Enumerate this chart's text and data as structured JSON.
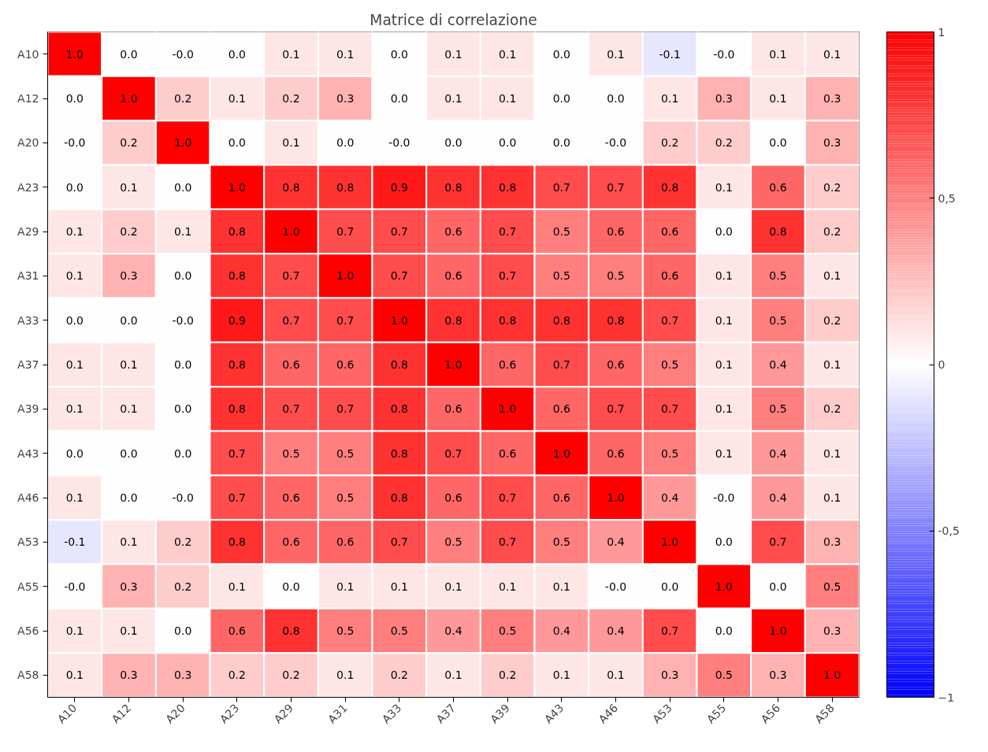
{
  "chart_data": {
    "type": "heatmap",
    "title": "Matrice di correlazione",
    "categories": [
      "A10",
      "A12",
      "A20",
      "A23",
      "A29",
      "A31",
      "A33",
      "A37",
      "A39",
      "A43",
      "A46",
      "A53",
      "A55",
      "A56",
      "A58"
    ],
    "y_categories": [
      "A10",
      "A12",
      "A20",
      "A23",
      "A29",
      "A31",
      "A33",
      "A37",
      "A39",
      "A43",
      "A46",
      "A53",
      "A55",
      "A56",
      "A58"
    ],
    "cells": [
      [
        1.0,
        0.0,
        -0.0,
        0.0,
        0.1,
        0.1,
        0.0,
        0.1,
        0.1,
        0.0,
        0.1,
        -0.1,
        -0.0,
        0.1,
        0.1
      ],
      [
        0.0,
        1.0,
        0.2,
        0.1,
        0.2,
        0.3,
        0.0,
        0.1,
        0.1,
        0.0,
        0.0,
        0.1,
        0.3,
        0.1,
        0.3
      ],
      [
        -0.0,
        0.2,
        1.0,
        0.0,
        0.1,
        0.0,
        -0.0,
        0.0,
        0.0,
        0.0,
        -0.0,
        0.2,
        0.2,
        0.0,
        0.3
      ],
      [
        0.0,
        0.1,
        0.0,
        1.0,
        0.8,
        0.8,
        0.9,
        0.8,
        0.8,
        0.7,
        0.7,
        0.8,
        0.1,
        0.6,
        0.2
      ],
      [
        0.1,
        0.2,
        0.1,
        0.8,
        1.0,
        0.7,
        0.7,
        0.6,
        0.7,
        0.5,
        0.6,
        0.6,
        0.0,
        0.8,
        0.2
      ],
      [
        0.1,
        0.3,
        0.0,
        0.8,
        0.7,
        1.0,
        0.7,
        0.6,
        0.7,
        0.5,
        0.5,
        0.6,
        0.1,
        0.5,
        0.1
      ],
      [
        0.0,
        0.0,
        -0.0,
        0.9,
        0.7,
        0.7,
        1.0,
        0.8,
        0.8,
        0.8,
        0.8,
        0.7,
        0.1,
        0.5,
        0.2
      ],
      [
        0.1,
        0.1,
        0.0,
        0.8,
        0.6,
        0.6,
        0.8,
        1.0,
        0.6,
        0.7,
        0.6,
        0.5,
        0.1,
        0.4,
        0.1
      ],
      [
        0.1,
        0.1,
        0.0,
        0.8,
        0.7,
        0.7,
        0.8,
        0.6,
        1.0,
        0.6,
        0.7,
        0.7,
        0.1,
        0.5,
        0.2
      ],
      [
        0.0,
        0.0,
        0.0,
        0.7,
        0.5,
        0.5,
        0.8,
        0.7,
        0.6,
        1.0,
        0.6,
        0.5,
        0.1,
        0.4,
        0.1
      ],
      [
        0.1,
        0.0,
        -0.0,
        0.7,
        0.6,
        0.5,
        0.8,
        0.6,
        0.7,
        0.6,
        1.0,
        0.4,
        -0.0,
        0.4,
        0.1
      ],
      [
        -0.1,
        0.1,
        0.2,
        0.8,
        0.6,
        0.6,
        0.7,
        0.5,
        0.7,
        0.5,
        0.4,
        1.0,
        0.0,
        0.7,
        0.3
      ],
      [
        -0.0,
        0.3,
        0.2,
        0.1,
        0.0,
        0.1,
        0.1,
        0.1,
        0.1,
        0.1,
        -0.0,
        0.0,
        1.0,
        0.0,
        0.5
      ],
      [
        0.1,
        0.1,
        0.0,
        0.6,
        0.8,
        0.5,
        0.5,
        0.4,
        0.5,
        0.4,
        0.4,
        0.7,
        0.0,
        1.0,
        0.3
      ],
      [
        0.1,
        0.3,
        0.3,
        0.2,
        0.2,
        0.1,
        0.2,
        0.1,
        0.2,
        0.1,
        0.1,
        0.3,
        0.5,
        0.3,
        1.0
      ]
    ],
    "cell_labels": [
      [
        "1.0",
        "0.0",
        "-0.0",
        "0.0",
        "0.1",
        "0.1",
        "0.0",
        "0.1",
        "0.1",
        "0.0",
        "0.1",
        "-0.1",
        "-0.0",
        "0.1",
        "0.1"
      ],
      [
        "0.0",
        "1.0",
        "0.2",
        "0.1",
        "0.2",
        "0.3",
        "0.0",
        "0.1",
        "0.1",
        "0.0",
        "0.0",
        "0.1",
        "0.3",
        "0.1",
        "0.3"
      ],
      [
        "-0.0",
        "0.2",
        "1.0",
        "0.0",
        "0.1",
        "0.0",
        "-0.0",
        "0.0",
        "0.0",
        "0.0",
        "-0.0",
        "0.2",
        "0.2",
        "0.0",
        "0.3"
      ],
      [
        "0.0",
        "0.1",
        "0.0",
        "1.0",
        "0.8",
        "0.8",
        "0.9",
        "0.8",
        "0.8",
        "0.7",
        "0.7",
        "0.8",
        "0.1",
        "0.6",
        "0.2"
      ],
      [
        "0.1",
        "0.2",
        "0.1",
        "0.8",
        "1.0",
        "0.7",
        "0.7",
        "0.6",
        "0.7",
        "0.5",
        "0.6",
        "0.6",
        "0.0",
        "0.8",
        "0.2"
      ],
      [
        "0.1",
        "0.3",
        "0.0",
        "0.8",
        "0.7",
        "1.0",
        "0.7",
        "0.6",
        "0.7",
        "0.5",
        "0.5",
        "0.6",
        "0.1",
        "0.5",
        "0.1"
      ],
      [
        "0.0",
        "0.0",
        "-0.0",
        "0.9",
        "0.7",
        "0.7",
        "1.0",
        "0.8",
        "0.8",
        "0.8",
        "0.8",
        "0.7",
        "0.1",
        "0.5",
        "0.2"
      ],
      [
        "0.1",
        "0.1",
        "0.0",
        "0.8",
        "0.6",
        "0.6",
        "0.8",
        "1.0",
        "0.6",
        "0.7",
        "0.6",
        "0.5",
        "0.1",
        "0.4",
        "0.1"
      ],
      [
        "0.1",
        "0.1",
        "0.0",
        "0.8",
        "0.7",
        "0.7",
        "0.8",
        "0.6",
        "1.0",
        "0.6",
        "0.7",
        "0.7",
        "0.1",
        "0.5",
        "0.2"
      ],
      [
        "0.0",
        "0.0",
        "0.0",
        "0.7",
        "0.5",
        "0.5",
        "0.8",
        "0.7",
        "0.6",
        "1.0",
        "0.6",
        "0.5",
        "0.1",
        "0.4",
        "0.1"
      ],
      [
        "0.1",
        "0.0",
        "-0.0",
        "0.7",
        "0.6",
        "0.5",
        "0.8",
        "0.6",
        "0.7",
        "0.6",
        "1.0",
        "0.4",
        "-0.0",
        "0.4",
        "0.1"
      ],
      [
        "-0.1",
        "0.1",
        "0.2",
        "0.8",
        "0.6",
        "0.6",
        "0.7",
        "0.5",
        "0.7",
        "0.5",
        "0.4",
        "1.0",
        "0.0",
        "0.7",
        "0.3"
      ],
      [
        "-0.0",
        "0.3",
        "0.2",
        "0.1",
        "0.0",
        "0.1",
        "0.1",
        "0.1",
        "0.1",
        "0.1",
        "-0.0",
        "0.0",
        "1.0",
        "0.0",
        "0.5"
      ],
      [
        "0.1",
        "0.1",
        "0.0",
        "0.6",
        "0.8",
        "0.5",
        "0.5",
        "0.4",
        "0.5",
        "0.4",
        "0.4",
        "0.7",
        "0.0",
        "1.0",
        "0.3"
      ],
      [
        "0.1",
        "0.3",
        "0.3",
        "0.2",
        "0.2",
        "0.1",
        "0.2",
        "0.1",
        "0.2",
        "0.1",
        "0.1",
        "0.3",
        "0.5",
        "0.3",
        "1.0"
      ]
    ],
    "clim": [
      -1,
      1
    ],
    "cticks": [
      1,
      {
        "value": 0.5,
        "label": "0,5"
      },
      0,
      {
        "value": -0.5,
        "label": "-0,5"
      },
      -1
    ],
    "grid": false
  }
}
